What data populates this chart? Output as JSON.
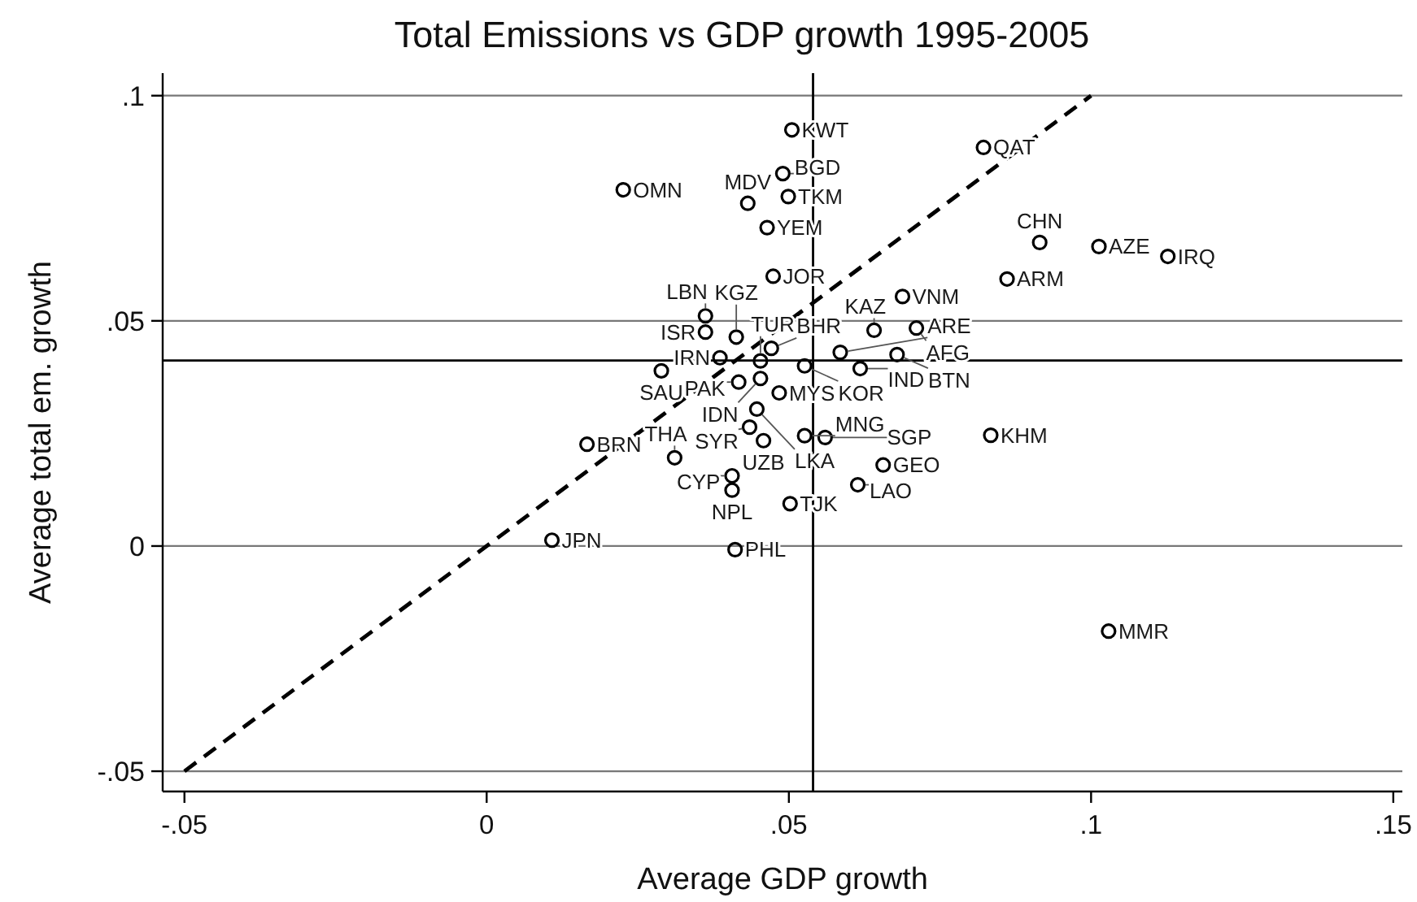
{
  "chart_data": {
    "type": "scatter",
    "title": "Total Emissions vs GDP growth 1995-2005",
    "xlabel": "Average GDP growth",
    "ylabel": "Average total em. growth",
    "xlim": [
      -0.0536,
      0.1515
    ],
    "ylim": [
      -0.0545,
      0.105
    ],
    "xticks": [
      {
        "value": -0.05,
        "label": "-.05"
      },
      0,
      {
        "value": 0.05,
        "label": ".05"
      },
      {
        "value": 0.1,
        "label": ".1"
      },
      {
        "value": 0.15,
        "label": ".15"
      }
    ],
    "yticks": [
      {
        "value": -0.05,
        "label": "-.05"
      },
      0,
      {
        "value": 0.05,
        "label": ".05"
      },
      {
        "value": 0.1,
        "label": ".1"
      }
    ],
    "grid": "y",
    "ref_lines": [
      {
        "axis": "y",
        "value": 0.0412,
        "color": "#000000"
      },
      {
        "axis": "x",
        "value": 0.054,
        "color": "#000000"
      }
    ],
    "series": [
      {
        "color": "#000000",
        "marker": "circle",
        "x": [
          0.0505,
          0.0822,
          0.049,
          0.0226,
          0.0432,
          0.0499,
          0.0464,
          0.0474,
          0.0915,
          0.1013,
          0.1127,
          0.0861,
          0.0688,
          0.0362,
          0.0362,
          0.0413,
          0.0471,
          0.0585,
          0.0386,
          0.0453,
          0.0526,
          0.0618,
          0.0641,
          0.0711,
          0.0679,
          0.0289,
          0.0417,
          0.0453,
          0.0484,
          0.0447,
          0.0435,
          0.0458,
          0.0526,
          0.056,
          0.0166,
          0.0311,
          0.0406,
          0.0406,
          0.0502,
          0.0614,
          0.0656,
          0.0834,
          0.1029,
          0.0108,
          0.0411
        ],
        "values": [
          0.0924,
          0.0885,
          0.0827,
          0.0791,
          0.0761,
          0.0776,
          0.0707,
          0.0599,
          0.0674,
          0.0665,
          0.0643,
          0.0593,
          0.0554,
          0.0511,
          0.0475,
          0.0464,
          0.0439,
          0.043,
          0.0418,
          0.0411,
          0.04,
          0.0394,
          0.0479,
          0.0484,
          0.0425,
          0.0389,
          0.0364,
          0.0372,
          0.034,
          0.0304,
          0.0264,
          0.0234,
          0.0245,
          0.0241,
          0.0226,
          0.0196,
          0.0156,
          0.0124,
          0.0094,
          0.0136,
          0.018,
          0.0246,
          -0.0189,
          0.0013,
          -0.0008
        ],
        "value_labels": [
          "KWT",
          "QAT",
          "BGD",
          "OMN",
          "MDV",
          "TKM",
          "YEM",
          "JOR",
          "CHN",
          "AZE",
          "IRQ",
          "ARM",
          "VNM",
          "LBN",
          "ISR",
          "KGZ",
          "BHR",
          "ARE",
          "IRN",
          "TUR",
          "KOR",
          "IND",
          "KAZ",
          "AFG",
          "BTN",
          "SAU",
          "PAK",
          "IDN",
          "MYS",
          "LKA",
          "SYR",
          "UZB",
          "MNG",
          "SGP",
          "BRN",
          "THA",
          "CYP",
          "NPL",
          "TJK",
          "LAO",
          "GEO",
          "KHM",
          "MMR",
          "JPN",
          "PHL"
        ]
      },
      {
        "type": "line",
        "color": "#000000",
        "line_style": "dashed",
        "x": [
          -0.05,
          0.1
        ],
        "values": [
          -0.05,
          0.1
        ]
      }
    ]
  }
}
